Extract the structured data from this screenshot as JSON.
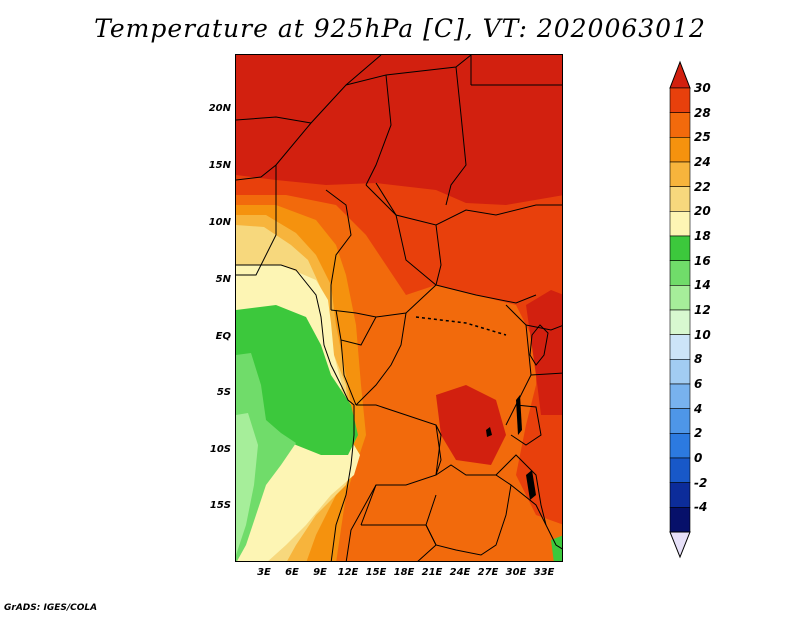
{
  "title": "Temperature at 925hPa [C], VT: 2020063012",
  "credit": "GrADS: IGES/COLA",
  "map": {
    "lat_labels": [
      "20N",
      "15N",
      "10N",
      "5N",
      "EQ",
      "5S",
      "10S",
      "15S"
    ],
    "lon_labels": [
      "3E",
      "6E",
      "9E",
      "12E",
      "15E",
      "18E",
      "21E",
      "24E",
      "27E",
      "30E",
      "33E"
    ]
  },
  "colorbar": {
    "labels": [
      "30",
      "28",
      "25",
      "24",
      "22",
      "20",
      "18",
      "16",
      "14",
      "12",
      "10",
      "8",
      "6",
      "4",
      "2",
      "0",
      "-2",
      "-4"
    ],
    "colors": [
      "#d2200f",
      "#e8400c",
      "#f26a0c",
      "#f5920e",
      "#f7b43c",
      "#f7d87d",
      "#fdf5b4",
      "#3cc83c",
      "#70dc6a",
      "#a6ee9a",
      "#d8f8d0",
      "#cce4f8",
      "#a2ccf2",
      "#78b2ee",
      "#4e96e8",
      "#2c7ae0",
      "#1858c8",
      "#0c2c9a",
      "#06106a",
      "#e6e0f8"
    ]
  },
  "palette": {
    "c30": "#d2200f",
    "c28": "#e8400c",
    "c25": "#f26a0c",
    "c24": "#f5920e",
    "c22": "#f7b43c",
    "c20": "#f7d87d",
    "c18": "#fdf5b4",
    "c16": "#3cc83c",
    "c14": "#70dc6a",
    "c12": "#a6ee9a"
  }
}
